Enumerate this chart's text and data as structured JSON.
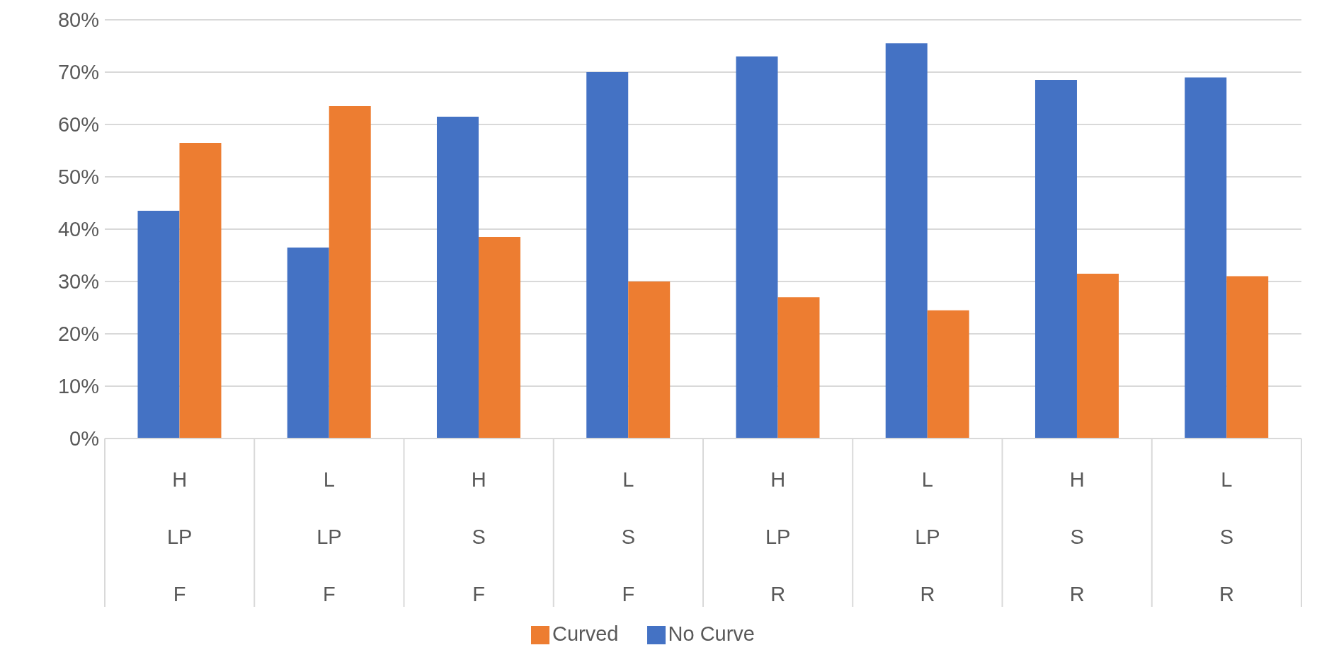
{
  "chart_data": {
    "type": "bar",
    "categories": [
      "H\nLP\nF",
      "L\nLP\nF",
      "H\nS\nF",
      "L\nS\nF",
      "H\nLP\nR",
      "L\nLP\nR",
      "H\nS\nR",
      "L\nS\nR"
    ],
    "series": [
      {
        "name": "No Curve",
        "color": "#4472c4",
        "values": [
          43.5,
          36.5,
          61.5,
          70,
          73,
          75.5,
          68.5,
          69
        ]
      },
      {
        "name": "Curved",
        "color": "#ed7d31",
        "values": [
          56.5,
          63.5,
          38.5,
          30,
          27,
          24.5,
          31.5,
          31
        ]
      }
    ],
    "ylim": [
      0,
      80
    ],
    "yticks": [
      {
        "value": 0,
        "label": "0%"
      },
      {
        "value": 10,
        "label": "10%"
      },
      {
        "value": 20,
        "label": "20%"
      },
      {
        "value": 30,
        "label": "30%"
      },
      {
        "value": 40,
        "label": "40%"
      },
      {
        "value": 50,
        "label": "50%"
      },
      {
        "value": 60,
        "label": "60%"
      },
      {
        "value": 70,
        "label": "70%"
      },
      {
        "value": 80,
        "label": "80%"
      }
    ],
    "grid": "y",
    "legend": "bottom"
  }
}
